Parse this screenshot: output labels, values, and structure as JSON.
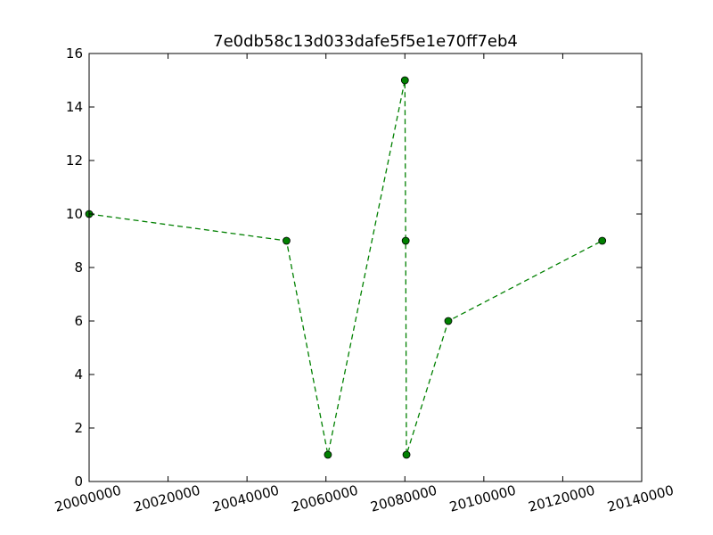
{
  "chart_data": {
    "type": "line",
    "title": "7e0db58c13d033dafe5f5e1e70ff7eb4",
    "xlabel": "",
    "ylabel": "",
    "xlim": [
      20000000,
      20140000
    ],
    "ylim": [
      0,
      16
    ],
    "x_ticks": [
      20000000,
      20020000,
      20040000,
      20060000,
      20080000,
      20100000,
      20120000,
      20140000
    ],
    "x_tick_labels": [
      "20000000",
      "20020000",
      "20040000",
      "20060000",
      "20080000",
      "20100000",
      "20120000",
      "20140000"
    ],
    "y_ticks": [
      0,
      2,
      4,
      6,
      8,
      10,
      12,
      14,
      16
    ],
    "y_tick_labels": [
      "0",
      "2",
      "4",
      "6",
      "8",
      "10",
      "12",
      "14",
      "16"
    ],
    "grid": false,
    "series": [
      {
        "color": "#008000",
        "line_style": "dashed",
        "marker": "circle",
        "points": [
          {
            "x": 20000000,
            "y": 10
          },
          {
            "x": 20050000,
            "y": 9
          },
          {
            "x": 20060500,
            "y": 1
          },
          {
            "x": 20080000,
            "y": 15
          },
          {
            "x": 20080200,
            "y": 9
          },
          {
            "x": 20080400,
            "y": 1
          },
          {
            "x": 20091000,
            "y": 6
          },
          {
            "x": 20130000,
            "y": 9
          }
        ]
      }
    ]
  }
}
